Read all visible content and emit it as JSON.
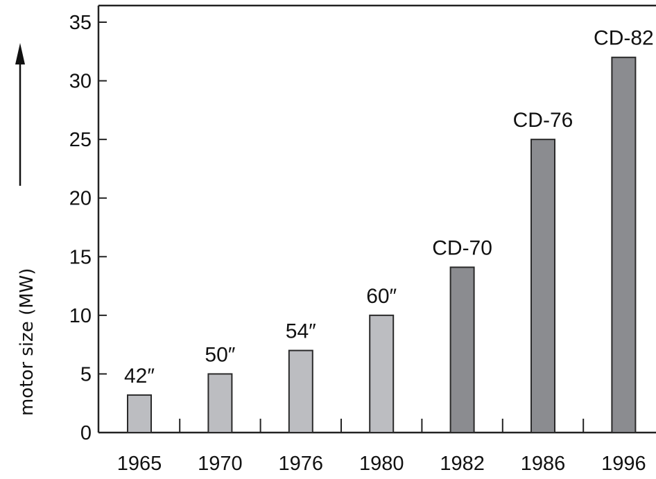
{
  "chart_data": {
    "type": "bar",
    "title": "",
    "xlabel": "",
    "ylabel": "motor size (MW)",
    "ylim": [
      0,
      35
    ],
    "yticks": [
      "0",
      "5",
      "10",
      "15",
      "20",
      "25",
      "30",
      "35"
    ],
    "grid": false,
    "categories": [
      "1965",
      "1970",
      "1976",
      "1980",
      "1982",
      "1986",
      "1996"
    ],
    "values": [
      3.2,
      5,
      7,
      10,
      14.1,
      25,
      32
    ],
    "bar_labels": [
      "42″",
      "50″",
      "54″",
      "60″",
      "CD-70",
      "CD-76",
      "CD-82"
    ],
    "bar_colors": [
      "#bcbdc1",
      "#bcbdc1",
      "#bcbdc1",
      "#bcbdc1",
      "#8b8c90",
      "#8b8c90",
      "#8b8c90"
    ],
    "colors": {
      "axis": "#222222",
      "bar_outline": "#2a2a2a"
    }
  }
}
